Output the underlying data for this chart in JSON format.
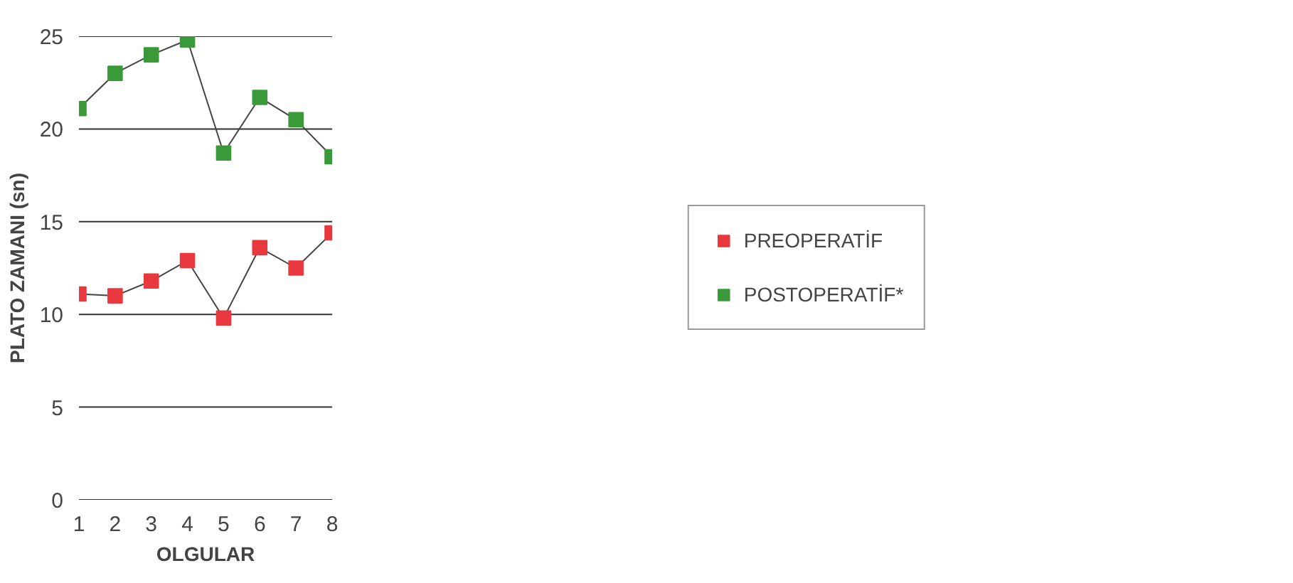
{
  "chart_data": {
    "type": "line",
    "xlabel": "OLGULAR",
    "ylabel": "PLATO ZAMANI (sn)",
    "x": [
      1,
      2,
      3,
      4,
      5,
      6,
      7,
      8
    ],
    "series": [
      {
        "name": "PREOPERATİF",
        "color": "#e8383d",
        "values": [
          11.1,
          11.0,
          11.8,
          12.9,
          9.8,
          13.6,
          12.5,
          14.4
        ]
      },
      {
        "name": "POSTOPERATİF*",
        "color": "#3a9a3a",
        "values": [
          21.1,
          23.0,
          24.0,
          24.8,
          18.7,
          21.7,
          20.5,
          18.5
        ]
      }
    ],
    "xlim": [
      1,
      8
    ],
    "xticks": [
      1,
      2,
      3,
      4,
      5,
      6,
      7,
      8
    ],
    "ylim": [
      0,
      25
    ],
    "yticks": [
      0,
      5,
      10,
      15,
      20,
      25
    ],
    "grid": "y",
    "legend": "right",
    "marker": "square",
    "line_style": "solid"
  }
}
